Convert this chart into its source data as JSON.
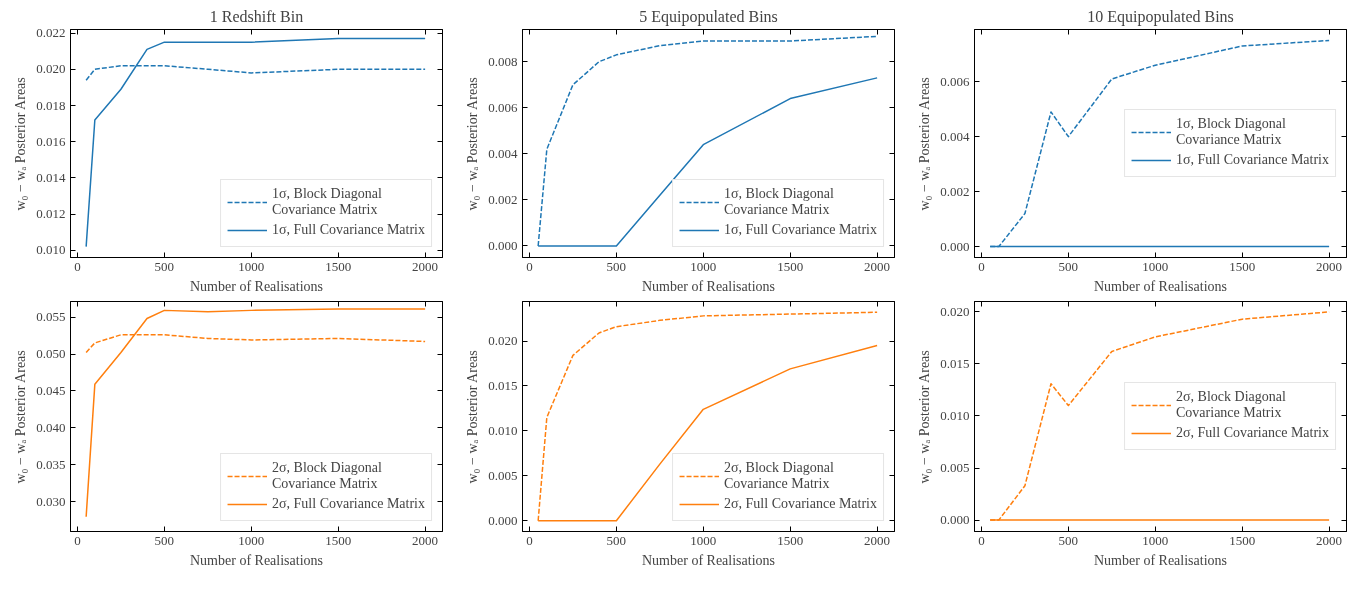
{
  "chart_data": [
    {
      "type": "line",
      "title": "1 Redshift Bin",
      "xlabel": "Number of Realisations",
      "ylabel": "w₀ − wₐ Posterior Areas",
      "x": [
        50,
        100,
        250,
        400,
        500,
        750,
        1000,
        1500,
        2000
      ],
      "xlim": [
        -40,
        2100
      ],
      "xticks": [
        0,
        500,
        1000,
        1500,
        2000
      ],
      "ylim": [
        0.0096,
        0.0222
      ],
      "yticks": [
        {
          "value": 0.01,
          "label": "0.010"
        },
        0.012,
        0.014,
        0.016,
        0.018,
        {
          "value": 0.02,
          "label": "0.020"
        },
        0.022
      ],
      "grid": false,
      "legend": "bottom right",
      "series": [
        {
          "name": "1σ, Block Diagonal\nCovariance Matrix",
          "color": "#1f77b4",
          "line_style": "dashed",
          "values": [
            0.0194,
            0.02,
            0.0202,
            0.0202,
            0.0202,
            0.02,
            0.0198,
            0.02,
            0.02
          ]
        },
        {
          "name": "1σ, Full Covariance Matrix",
          "color": "#1f77b4",
          "line_style": "solid",
          "values": [
            0.0102,
            0.0172,
            0.0189,
            0.0211,
            0.0215,
            0.0215,
            0.0215,
            0.0217,
            0.0217
          ]
        }
      ]
    },
    {
      "type": "line",
      "title": "5 Equipopulated Bins",
      "xlabel": "Number of Realisations",
      "ylabel": "w₀ − wₐ Posterior Areas",
      "x": [
        50,
        100,
        250,
        400,
        500,
        750,
        1000,
        1500,
        2000
      ],
      "xlim": [
        -40,
        2100
      ],
      "xticks": [
        0,
        500,
        1000,
        1500,
        2000
      ],
      "ylim": [
        -0.0005,
        0.0094
      ],
      "yticks": [
        {
          "value": 0,
          "label": "0.000"
        },
        0.002,
        0.004,
        0.006,
        0.008
      ],
      "grid": false,
      "legend": "bottom right",
      "series": [
        {
          "name": "1σ, Block Diagonal\nCovariance Matrix",
          "color": "#1f77b4",
          "line_style": "dashed",
          "values": [
            0,
            0.0042,
            0.007,
            0.008,
            0.0083,
            0.0087,
            0.0089,
            0.0089,
            0.0091
          ]
        },
        {
          "name": "1σ, Full Covariance Matrix",
          "color": "#1f77b4",
          "line_style": "solid",
          "values": [
            0,
            0,
            0,
            0,
            0,
            0.0022,
            0.0044,
            0.0064,
            0.0073
          ]
        }
      ]
    },
    {
      "type": "line",
      "title": "10 Equipopulated Bins",
      "xlabel": "Number of Realisations",
      "ylabel": "w₀ − wₐ Posterior Areas",
      "x": [
        50,
        100,
        250,
        400,
        500,
        750,
        1000,
        1500,
        2000
      ],
      "xlim": [
        -40,
        2100
      ],
      "xticks": [
        0,
        500,
        1000,
        1500,
        2000
      ],
      "ylim": [
        -0.0004,
        0.0079
      ],
      "yticks": [
        {
          "value": 0,
          "label": "0.000"
        },
        0.002,
        0.004,
        0.006
      ],
      "grid": false,
      "legend": "right",
      "series": [
        {
          "name": "1σ, Block Diagonal\nCovariance Matrix",
          "color": "#1f77b4",
          "line_style": "dashed",
          "values": [
            0,
            0,
            0.0012,
            0.0049,
            0.004,
            0.0061,
            0.0066,
            0.0073,
            0.0075
          ]
        },
        {
          "name": "1σ, Full Covariance Matrix",
          "color": "#1f77b4",
          "line_style": "solid",
          "values": [
            0,
            0,
            0,
            0,
            0,
            0,
            0,
            0,
            0
          ]
        }
      ]
    },
    {
      "type": "line",
      "xlabel": "Number of Realisations",
      "ylabel": "w₀ − wₐ Posterior Areas",
      "x": [
        50,
        100,
        250,
        400,
        500,
        750,
        1000,
        1500,
        2000
      ],
      "xlim": [
        -40,
        2100
      ],
      "xticks": [
        0,
        500,
        1000,
        1500,
        2000
      ],
      "ylim": [
        0.026,
        0.0571
      ],
      "yticks": [
        {
          "value": 0.03,
          "label": "0.030"
        },
        {
          "value": 0.035,
          "label": "0.035"
        },
        {
          "value": 0.04,
          "label": "0.040"
        },
        {
          "value": 0.045,
          "label": "0.045"
        },
        {
          "value": 0.05,
          "label": "0.050"
        },
        {
          "value": 0.055,
          "label": "0.055"
        }
      ],
      "grid": false,
      "legend": "bottom right",
      "series": [
        {
          "name": "2σ, Block Diagonal\nCovariance Matrix",
          "color": "#ff7f0e",
          "line_style": "dashed",
          "values": [
            0.0502,
            0.0515,
            0.0526,
            0.0526,
            0.0526,
            0.0521,
            0.0519,
            0.0521,
            0.0517
          ]
        },
        {
          "name": "2σ, Full Covariance Matrix",
          "color": "#ff7f0e",
          "line_style": "solid",
          "values": [
            0.028,
            0.0459,
            0.0502,
            0.0548,
            0.0559,
            0.0557,
            0.0559,
            0.0561,
            0.0561
          ]
        }
      ]
    },
    {
      "type": "line",
      "xlabel": "Number of Realisations",
      "ylabel": "w₀ − wₐ Posterior Areas",
      "x": [
        50,
        100,
        250,
        400,
        500,
        750,
        1000,
        1500,
        2000
      ],
      "xlim": [
        -40,
        2100
      ],
      "xticks": [
        0,
        500,
        1000,
        1500,
        2000
      ],
      "ylim": [
        -0.0012,
        0.0244
      ],
      "yticks": [
        {
          "value": 0,
          "label": "0.000"
        },
        {
          "value": 0.005,
          "label": "0.005"
        },
        {
          "value": 0.01,
          "label": "0.010"
        },
        {
          "value": 0.015,
          "label": "0.015"
        },
        {
          "value": 0.02,
          "label": "0.020"
        }
      ],
      "grid": false,
      "legend": "bottom right",
      "series": [
        {
          "name": "2σ, Block Diagonal\nCovariance Matrix",
          "color": "#ff7f0e",
          "line_style": "dashed",
          "values": [
            0,
            0.0115,
            0.0184,
            0.0209,
            0.0216,
            0.0223,
            0.0228,
            0.023,
            0.0232
          ]
        },
        {
          "name": "2σ, Full Covariance Matrix",
          "color": "#ff7f0e",
          "line_style": "solid",
          "values": [
            0,
            0,
            0,
            0,
            0,
            0.0063,
            0.0124,
            0.0169,
            0.0195
          ]
        }
      ]
    },
    {
      "type": "line",
      "xlabel": "Number of Realisations",
      "ylabel": "w₀ − wₐ Posterior Areas",
      "x": [
        50,
        100,
        250,
        400,
        500,
        750,
        1000,
        1500,
        2000
      ],
      "xlim": [
        -40,
        2100
      ],
      "xticks": [
        0,
        500,
        1000,
        1500,
        2000
      ],
      "ylim": [
        -0.0011,
        0.021
      ],
      "yticks": [
        {
          "value": 0,
          "label": "0.000"
        },
        {
          "value": 0.005,
          "label": "0.005"
        },
        {
          "value": 0.01,
          "label": "0.010"
        },
        {
          "value": 0.015,
          "label": "0.015"
        },
        {
          "value": 0.02,
          "label": "0.020"
        }
      ],
      "grid": false,
      "legend": "right",
      "series": [
        {
          "name": "2σ, Block Diagonal\nCovariance Matrix",
          "color": "#ff7f0e",
          "line_style": "dashed",
          "values": [
            0,
            0,
            0.0033,
            0.0131,
            0.011,
            0.0162,
            0.0176,
            0.0193,
            0.02
          ]
        },
        {
          "name": "2σ, Full Covariance Matrix",
          "color": "#ff7f0e",
          "line_style": "solid",
          "values": [
            0,
            0,
            0,
            0,
            0,
            0,
            0,
            0,
            0
          ]
        }
      ]
    }
  ]
}
